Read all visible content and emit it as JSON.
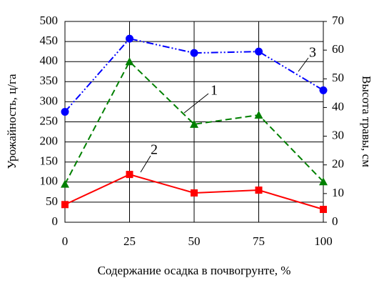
{
  "chart_data": {
    "type": "line",
    "x_label": "Содержание осадка в почвогрунте, %",
    "y_label": "Урожайность, ц/га",
    "y2_label": "Высота травы, см",
    "x": [
      0,
      25,
      50,
      75,
      100
    ],
    "xlim": [
      0,
      100
    ],
    "xticks": [
      0,
      25,
      50,
      75,
      100
    ],
    "ylim": [
      0,
      500
    ],
    "yticks": [
      0,
      50,
      100,
      150,
      200,
      250,
      300,
      350,
      400,
      450,
      500
    ],
    "y2lim": [
      0,
      70
    ],
    "y2ticks": [
      0,
      10,
      20,
      30,
      40,
      50,
      60,
      70
    ],
    "grid": true,
    "series": [
      {
        "name": "1",
        "color": "#008000",
        "marker": "triangle",
        "dash": "dashed",
        "values": [
          95,
          400,
          244,
          267,
          101
        ]
      },
      {
        "name": "2",
        "color": "#ff0000",
        "marker": "square",
        "dash": "solid",
        "values": [
          44,
          119,
          73,
          80,
          32
        ]
      },
      {
        "name": "3",
        "color": "#0000ff",
        "marker": "circle",
        "dash": "dashdotdot",
        "axis": "y2",
        "values": [
          38.5,
          64,
          59,
          59.5,
          46
        ]
      }
    ]
  }
}
